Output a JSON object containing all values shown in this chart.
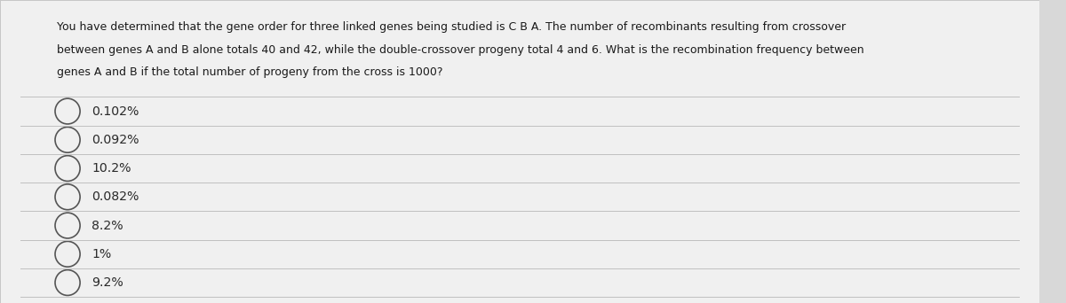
{
  "question_text_lines": [
    "You have determined that the gene order for three linked genes being studied is C B A. The number of recombinants resulting from crossover",
    "between genes A and B alone totals 40 and 42, while the double-crossover progeny total 4 and 6. What is the recombination frequency between",
    "genes A and B if the total number of progeny from the cross is 1000?"
  ],
  "options": [
    "0.102%",
    "0.092%",
    "10.2%",
    "0.082%",
    "8.2%",
    "1%",
    "9.2%"
  ],
  "bg_color": "#d8d8d8",
  "card_color": "#f0f0f0",
  "text_color": "#1a1a1a",
  "option_text_color": "#2a2a2a",
  "line_color": "#c0c0c0",
  "circle_color": "#555555",
  "question_fontsize": 9.0,
  "option_fontsize": 10.2
}
